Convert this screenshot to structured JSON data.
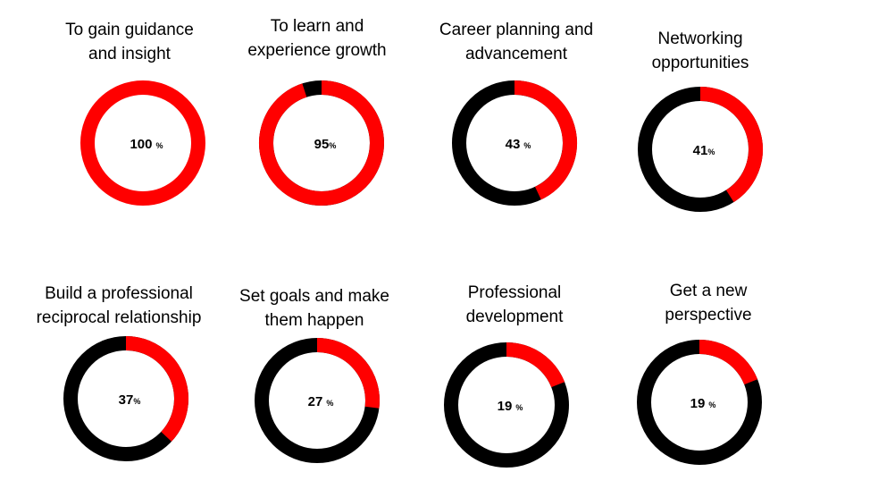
{
  "chart_data": [
    {
      "type": "pie",
      "title": "To gain guidance\nand insight",
      "values": [
        100
      ],
      "value_label": "100",
      "unit": "%",
      "spaced": true
    },
    {
      "type": "pie",
      "title": "To learn and\nexperience growth",
      "values": [
        95
      ],
      "value_label": "95",
      "unit": "%",
      "spaced": false
    },
    {
      "type": "pie",
      "title": "Career planning and\nadvancement",
      "values": [
        43
      ],
      "value_label": "43",
      "unit": "%",
      "spaced": true
    },
    {
      "type": "pie",
      "title": "Networking\nopportunities",
      "values": [
        41
      ],
      "value_label": "41",
      "unit": "%",
      "spaced": false
    },
    {
      "type": "pie",
      "title": "Build a professional\nreciprocal relationship",
      "values": [
        37
      ],
      "value_label": "37",
      "unit": "%",
      "spaced": false
    },
    {
      "type": "pie",
      "title": "Set goals and make\nthem happen",
      "values": [
        27
      ],
      "value_label": "27",
      "unit": "%",
      "spaced": true
    },
    {
      "type": "pie",
      "title": "Professional\ndevelopment",
      "values": [
        19
      ],
      "value_label": "19",
      "unit": "%",
      "spaced": true
    },
    {
      "type": "pie",
      "title": "Get a new\nperspective",
      "values": [
        19
      ],
      "value_label": "19",
      "unit": "%",
      "spaced": true
    }
  ],
  "colors": {
    "highlight": "#ff0000",
    "remainder": "#000000"
  }
}
